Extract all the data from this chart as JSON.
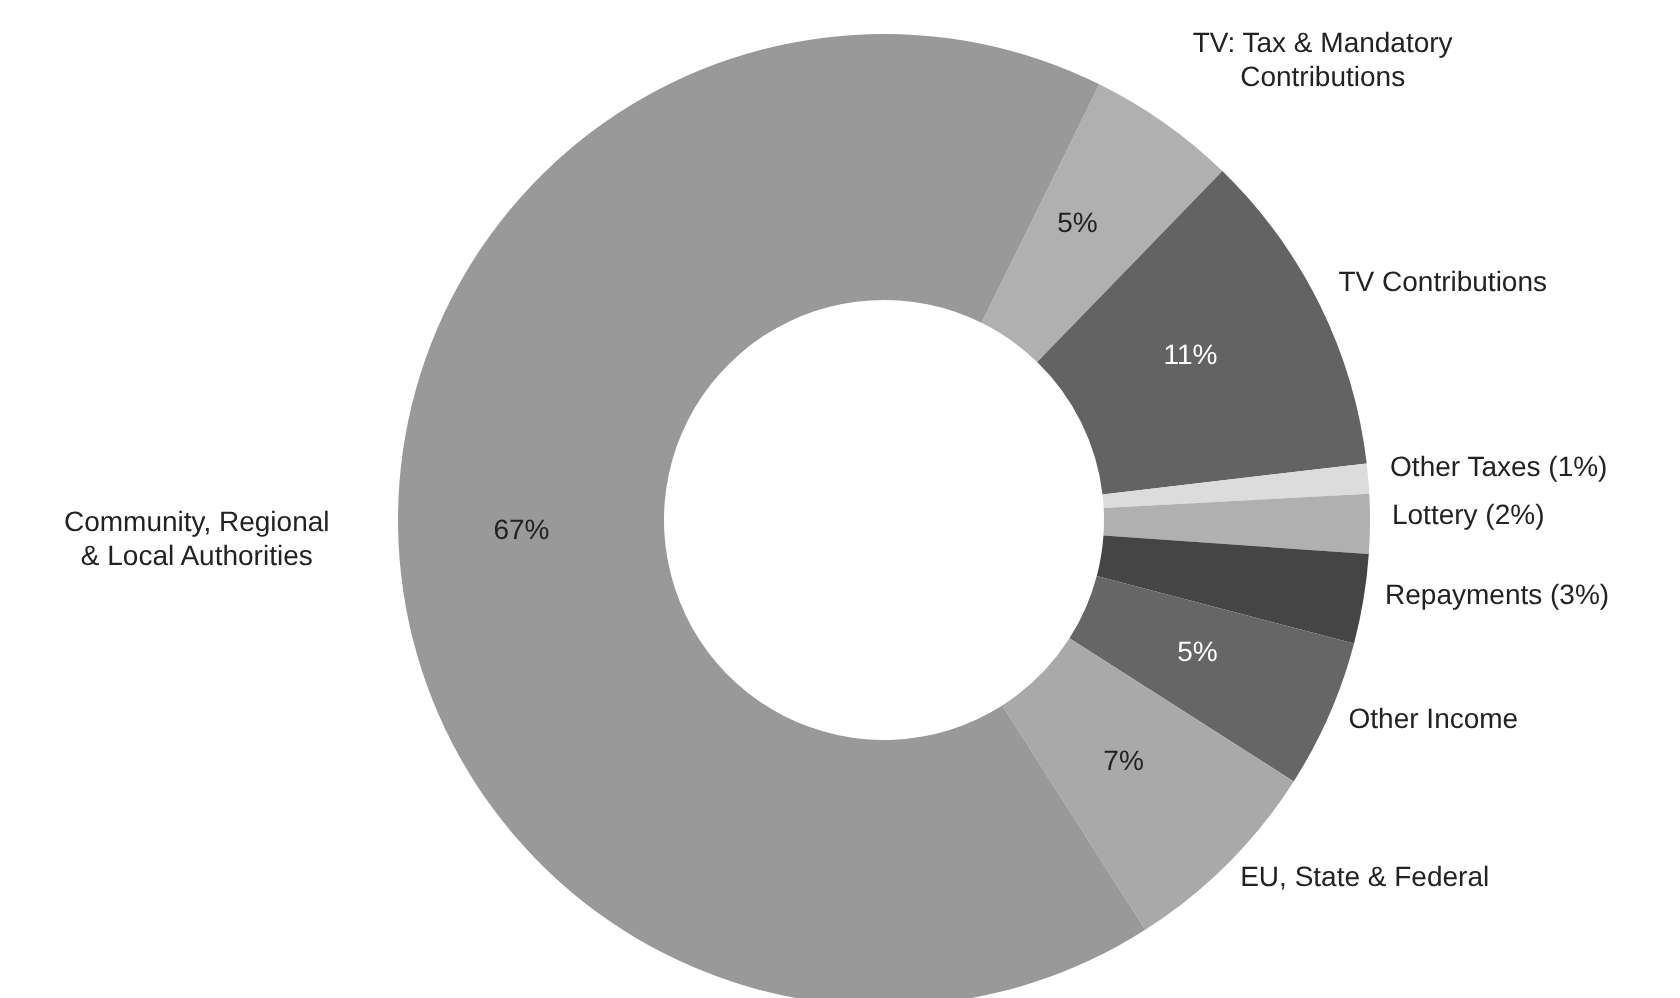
{
  "chart_data": {
    "type": "donut",
    "categories": [
      "TV: Tax & Mandatory Contributions",
      "TV Contributions",
      "Other Taxes (1%)",
      "Lottery (2%)",
      "Repayments (3%)",
      "Other Income",
      "EU, State & Federal",
      "Community, Regional & Local Authorities"
    ],
    "values": [
      5,
      11,
      1,
      2,
      3,
      5,
      7,
      67
    ],
    "colors": [
      "#b0b0b0",
      "#636363",
      "#dcdcdc",
      "#b0b0b0",
      "#454545",
      "#666666",
      "#a9a9a9",
      "#999999"
    ],
    "value_labels": [
      "5%",
      "11%",
      null,
      null,
      null,
      "5%",
      "7%",
      "67%"
    ]
  }
}
